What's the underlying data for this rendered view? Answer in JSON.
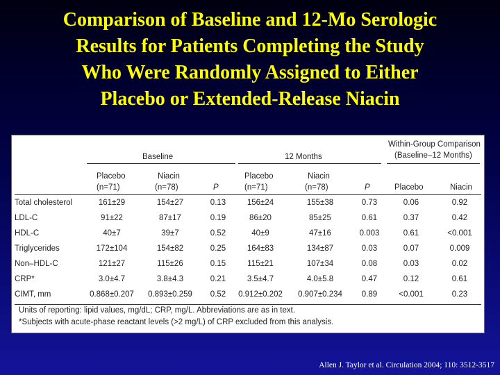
{
  "title_lines": [
    "Comparison of Baseline and 12-Mo Serologic",
    "Results for Patients Completing the Study",
    "Who Were Randomly Assigned to Either",
    "Placebo or Extended-Release Niacin"
  ],
  "table": {
    "group_headers": {
      "baseline": "Baseline",
      "months12": "12 Months",
      "within_line1": "Within-Group Comparison",
      "within_line2": "(Baseline–12 Months)"
    },
    "col_headers": {
      "placebo": "Placebo",
      "niacin": "Niacin",
      "n71": "(n=71)",
      "n78": "(n=78)",
      "p": "P"
    },
    "rows": [
      {
        "label": "Total cholesterol",
        "vals": [
          "161±29",
          "154±27",
          "0.13",
          "156±24",
          "155±38",
          "0.73",
          "0.06",
          "0.92"
        ]
      },
      {
        "label": "LDL-C",
        "vals": [
          "91±22",
          "87±17",
          "0.19",
          "86±20",
          "85±25",
          "0.61",
          "0.37",
          "0.42"
        ]
      },
      {
        "label": "HDL-C",
        "vals": [
          "40±7",
          "39±7",
          "0.52",
          "40±9",
          "47±16",
          "0.003",
          "0.61",
          "<0.001"
        ]
      },
      {
        "label": "Triglycerides",
        "vals": [
          "172±104",
          "154±82",
          "0.25",
          "164±83",
          "134±87",
          "0.03",
          "0.07",
          "0.009"
        ]
      },
      {
        "label": "Non–HDL-C",
        "vals": [
          "121±27",
          "115±26",
          "0.15",
          "115±21",
          "107±34",
          "0.08",
          "0.03",
          "0.02"
        ]
      },
      {
        "label": "CRP*",
        "vals": [
          "3.0±4.7",
          "3.8±4.3",
          "0.21",
          "3.5±4.7",
          "4.0±5.8",
          "0.47",
          "0.12",
          "0.61"
        ]
      },
      {
        "label": "CIMT, mm",
        "vals": [
          "0.868±0.207",
          "0.893±0.259",
          "0.52",
          "0.912±0.202",
          "0.907±0.234",
          "0.89",
          "<0.001",
          "0.23"
        ]
      }
    ],
    "footnotes": [
      "Units of reporting: lipid values, mg/dL; CRP, mg/L. Abbreviations are as in text.",
      "*Subjects with acute-phase reactant levels (>2 mg/L) of CRP excluded from this analysis."
    ]
  },
  "citation": "Allen J. Taylor et al. Circulation 2004; 110: 3512-3517"
}
